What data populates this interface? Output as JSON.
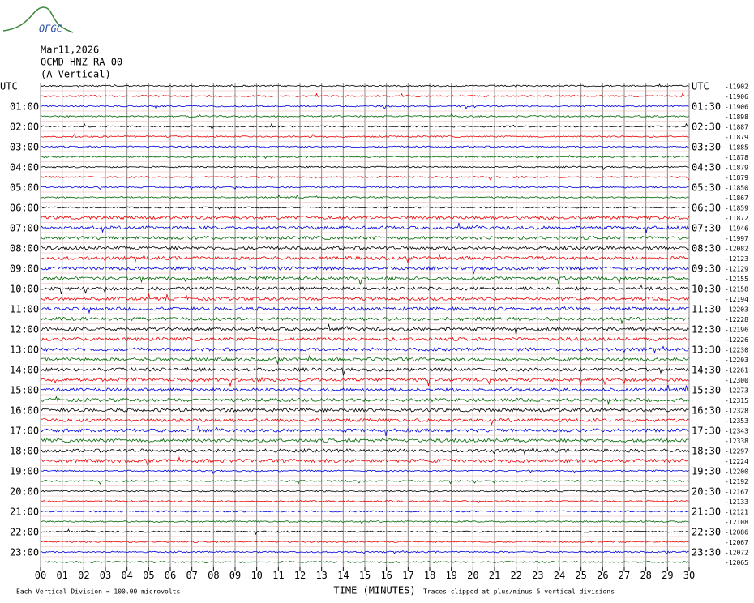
{
  "logo": "OFGC",
  "header": {
    "date": "Mar11,2026",
    "station": "OCMD HNZ RA 00",
    "component": "(A Vertical)"
  },
  "left_labels": [
    "UTC",
    "01:00",
    "02:00",
    "03:00",
    "04:00",
    "05:00",
    "06:00",
    "07:00",
    "08:00",
    "09:00",
    "10:00",
    "11:00",
    "12:00",
    "13:00",
    "14:00",
    "15:00",
    "16:00",
    "17:00",
    "18:00",
    "19:00",
    "20:00",
    "21:00",
    "22:00",
    "23:00"
  ],
  "right_labels": [
    "UTC",
    "01:30",
    "02:30",
    "03:30",
    "04:30",
    "05:30",
    "06:30",
    "07:30",
    "08:30",
    "09:30",
    "10:30",
    "11:30",
    "12:30",
    "13:30",
    "14:30",
    "15:30",
    "16:30",
    "17:30",
    "18:30",
    "19:30",
    "20:30",
    "21:30",
    "22:30",
    "23:30"
  ],
  "trace_offsets": [
    -11902,
    -11906,
    -11906,
    -11898,
    -11887,
    -11879,
    -11885,
    -11878,
    -11879,
    -11879,
    -11850,
    -11867,
    -11859,
    -11872,
    -11946,
    -11997,
    -12082,
    -12123,
    -12129,
    -12155,
    -12158,
    -12194,
    -12203,
    -12228,
    -12196,
    -12226,
    -12230,
    -12203,
    -12261,
    -12300,
    -12273,
    -12315,
    -12328,
    -12353,
    -12343,
    -12338,
    -12297,
    -12224,
    -12200,
    -12192,
    -12167,
    -12133,
    -12121,
    -12108,
    -12086,
    -12067,
    -12072,
    -12065
  ],
  "x_ticks": [
    "00",
    "01",
    "02",
    "03",
    "04",
    "05",
    "06",
    "07",
    "08",
    "09",
    "10",
    "11",
    "12",
    "13",
    "14",
    "15",
    "16",
    "17",
    "18",
    "19",
    "20",
    "21",
    "22",
    "23",
    "24",
    "25",
    "26",
    "27",
    "28",
    "29",
    "30"
  ],
  "x_label": "TIME (MINUTES)",
  "footer": {
    "scale": "Each Vertical Division =  100.00 microvolts",
    "clip": "Traces clipped at plus/minus 5 vertical divisions"
  }
}
